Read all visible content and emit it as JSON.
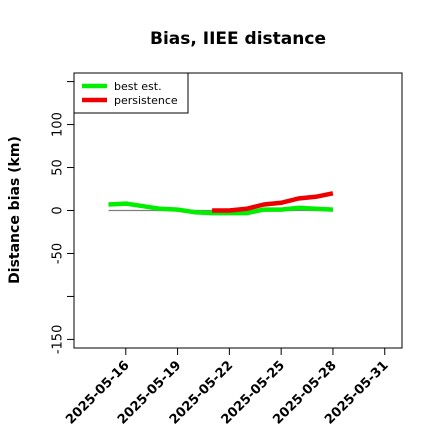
{
  "chart_data": {
    "type": "line",
    "title": "Bias, IIEE distance",
    "ylabel": "Distance bias (km)",
    "xlabel": "",
    "xlim": [
      "2025-05-13",
      "2025-06-01"
    ],
    "ylim": [
      -160,
      160
    ],
    "x_ticks": [
      "2025-05-16",
      "2025-05-19",
      "2025-05-22",
      "2025-05-25",
      "2025-05-28",
      "2025-05-31"
    ],
    "y_ticks": [
      -150,
      -100,
      -50,
      0,
      50,
      100,
      150
    ],
    "y_tick_labels": [
      "-150",
      "",
      "-50",
      "0",
      "50",
      "100",
      ""
    ],
    "grid": false,
    "legend_position": "top-left",
    "reference_line": {
      "x": [
        "2025-05-15",
        "2025-05-28"
      ],
      "y": [
        0,
        0
      ],
      "color": "#7f7f7f"
    },
    "series": [
      {
        "name": "best est.",
        "color": "#00ee00",
        "x": [
          "2025-05-15",
          "2025-05-16",
          "2025-05-17",
          "2025-05-18",
          "2025-05-19",
          "2025-05-20",
          "2025-05-21",
          "2025-05-22",
          "2025-05-23",
          "2025-05-24",
          "2025-05-25",
          "2025-05-26",
          "2025-05-27",
          "2025-05-28"
        ],
        "y": [
          7,
          8,
          5,
          2,
          1,
          -2,
          -3,
          -3,
          -3,
          1,
          1,
          3,
          2,
          1
        ]
      },
      {
        "name": "persistence",
        "color": "#ee0000",
        "x": [
          "2025-05-21",
          "2025-05-22",
          "2025-05-23",
          "2025-05-24",
          "2025-05-25",
          "2025-05-26",
          "2025-05-27",
          "2025-05-28"
        ],
        "y": [
          0,
          0,
          2,
          7,
          9,
          14,
          16,
          20
        ]
      }
    ]
  }
}
